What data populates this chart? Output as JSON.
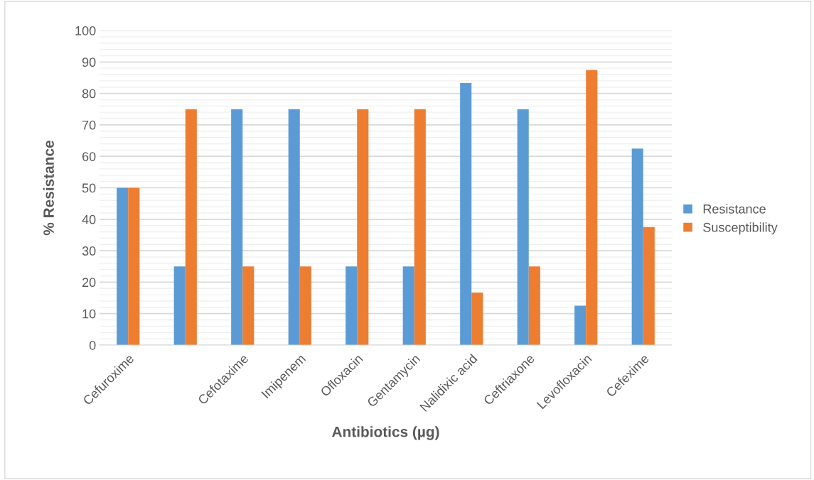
{
  "chart_data": {
    "type": "bar",
    "xlabel": "Antibiotics (µg)",
    "ylabel": "% Resistance",
    "categories": [
      "Cefuroxime",
      null,
      "Cefotaxime",
      "Imipenem",
      "Ofloxacin",
      "Gentamycin",
      "Nalidixic acid",
      "Ceftriaxone",
      "Levofloxacin",
      "Cefexime"
    ],
    "series": [
      {
        "name": "Resistance",
        "color": "#5b9bd5",
        "values": [
          50,
          25,
          75,
          75,
          25,
          25,
          83.3,
          75,
          12.5,
          62.5
        ]
      },
      {
        "name": "Susceptibility",
        "color": "#ed7d31",
        "values": [
          50,
          75,
          25,
          25,
          75,
          75,
          16.7,
          25,
          87.5,
          37.5
        ]
      }
    ],
    "ylim": [
      0,
      100
    ],
    "yticks": [
      0,
      10,
      20,
      30,
      40,
      50,
      60,
      70,
      80,
      90,
      100
    ],
    "grid": "y",
    "legend": "right"
  }
}
